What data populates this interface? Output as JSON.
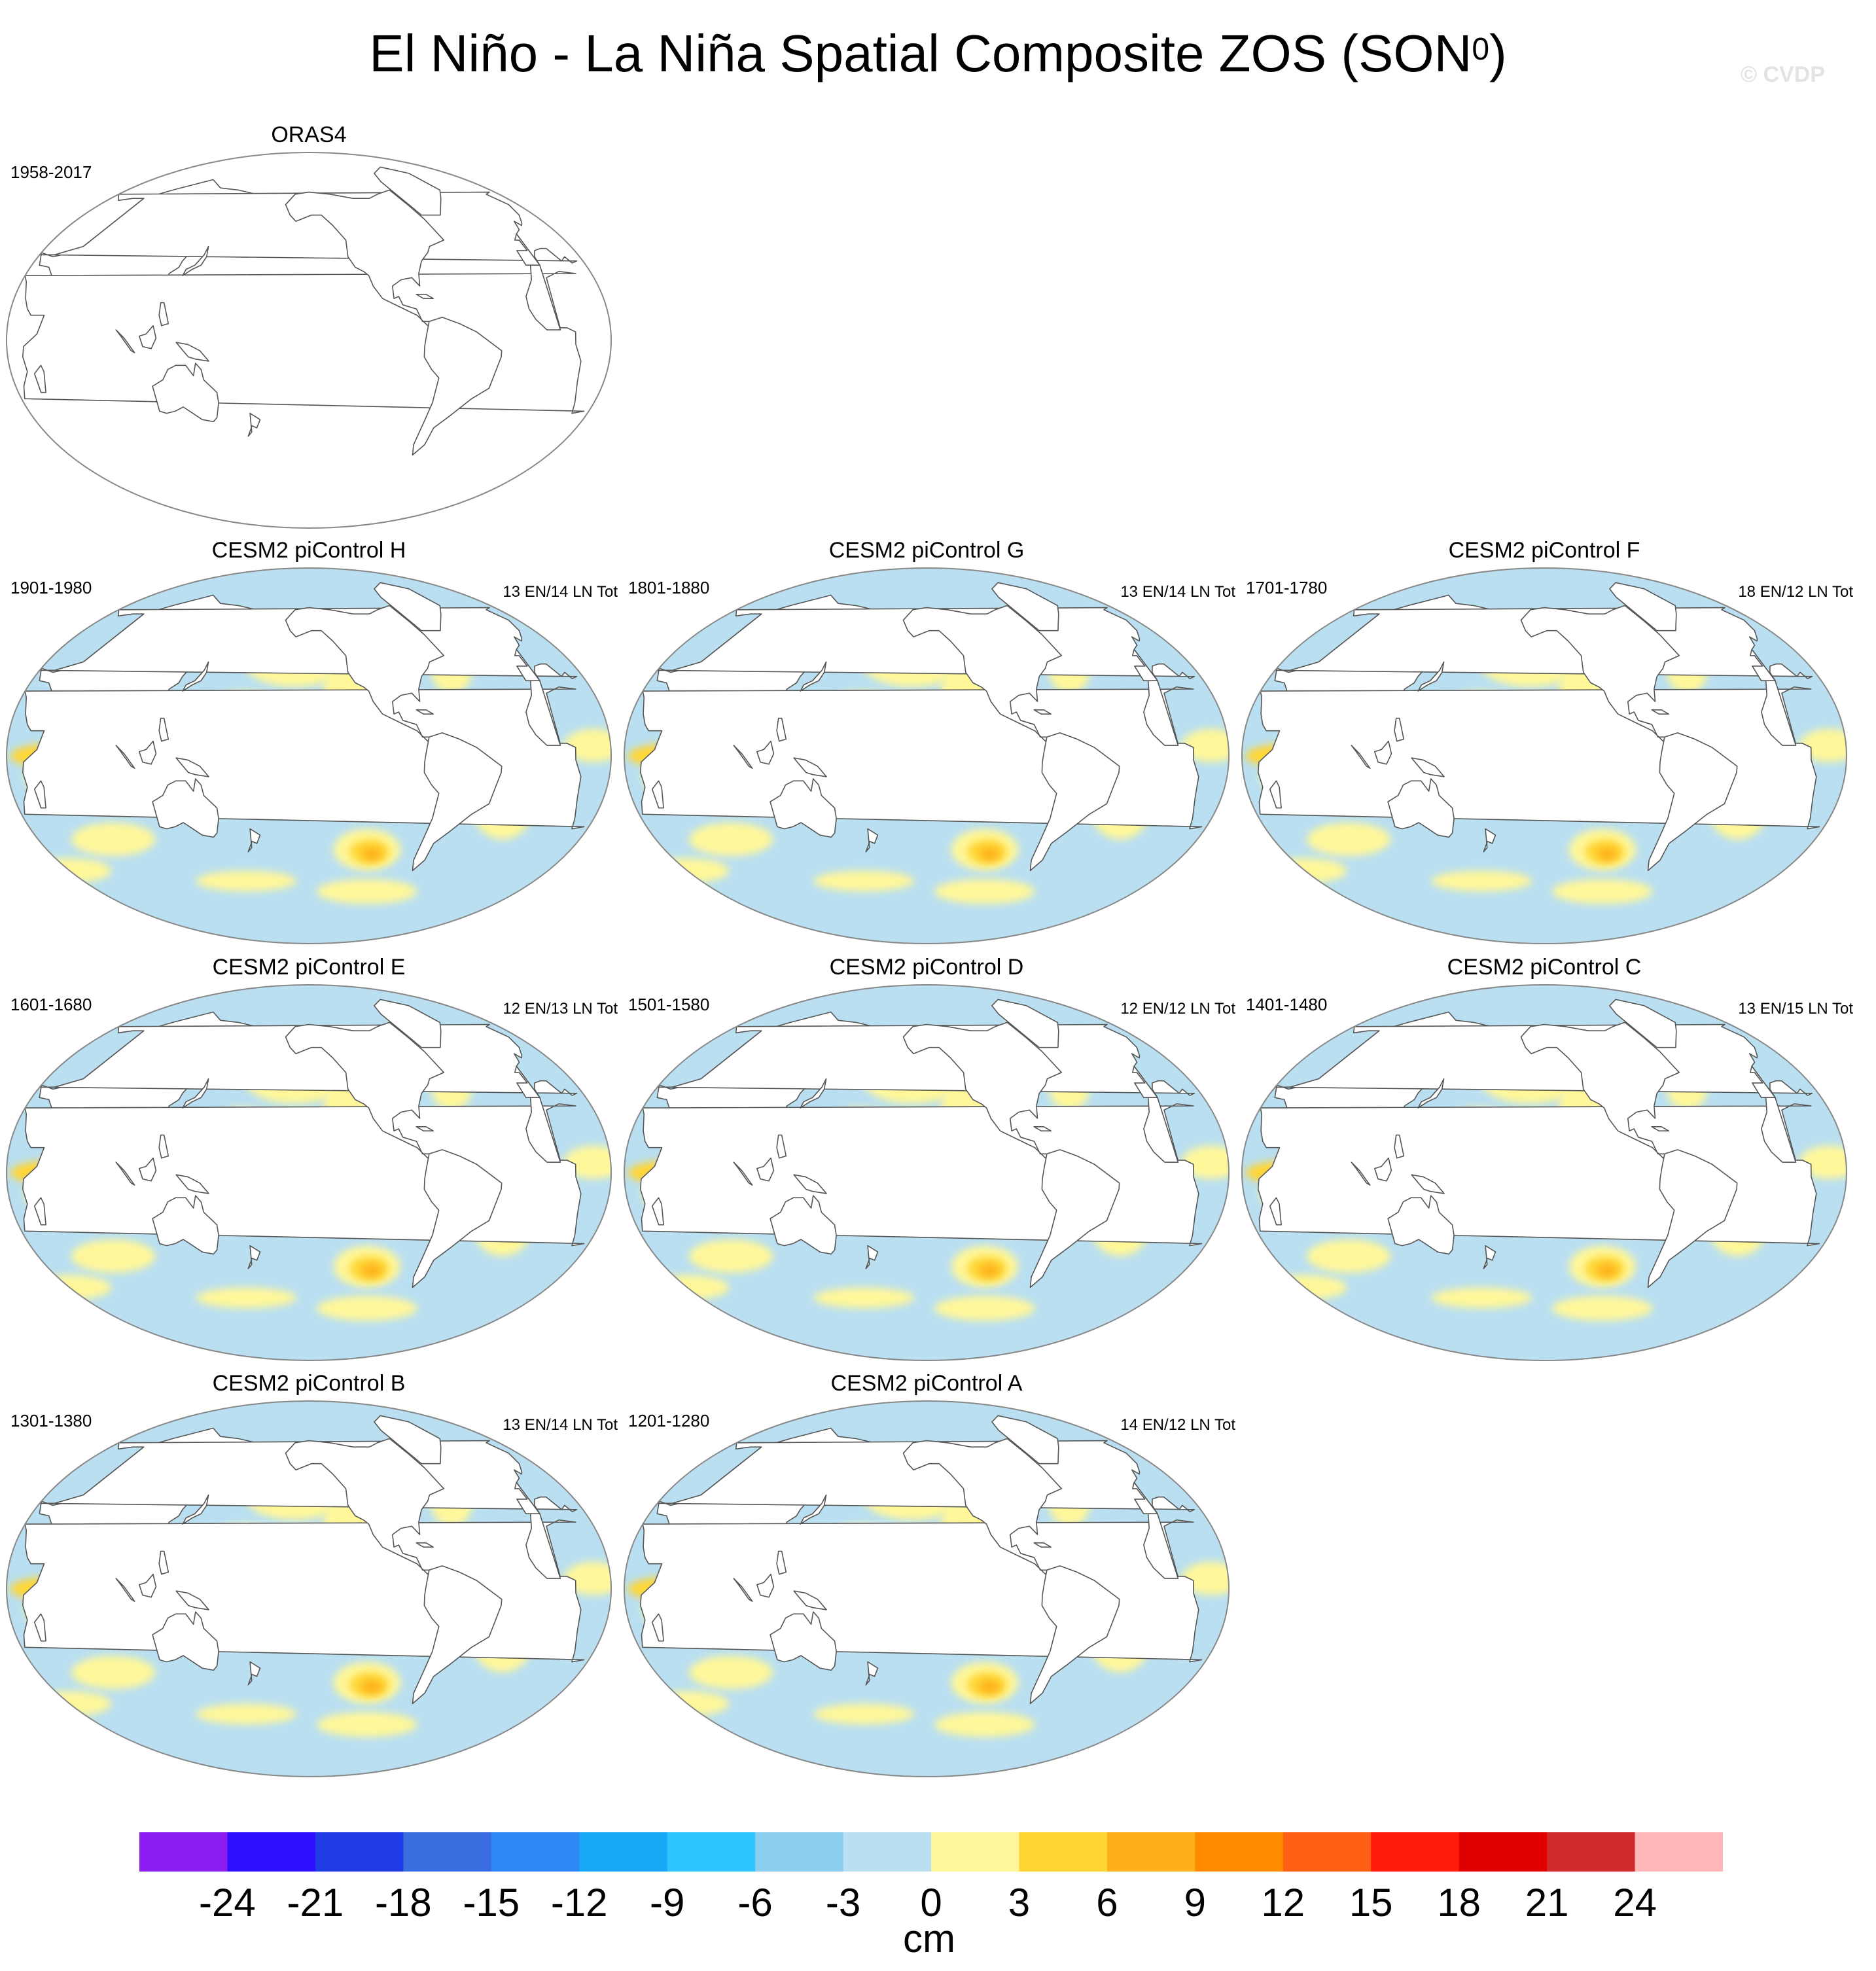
{
  "figure": {
    "title": "El Niño - La Niña Spatial Composite ZOS (SON",
    "title_superscript": "0",
    "title_close": ")",
    "watermark": "© CVDP"
  },
  "panels": [
    {
      "title": "ORAS4",
      "years": "1958-2017",
      "count": "",
      "has_data": false,
      "strength": 0
    },
    {
      "title": "CESM2 piControl H",
      "years": "1901-1980",
      "count": "13 EN/14 LN Tot",
      "has_data": true,
      "strength": 0.9
    },
    {
      "title": "CESM2 piControl G",
      "years": "1801-1880",
      "count": "13 EN/14 LN Tot",
      "has_data": true,
      "strength": 0.93
    },
    {
      "title": "CESM2 piControl F",
      "years": "1701-1780",
      "count": "18 EN/12 LN Tot",
      "has_data": true,
      "strength": 0.92
    },
    {
      "title": "CESM2 piControl E",
      "years": "1601-1680",
      "count": "12 EN/13 LN Tot",
      "has_data": true,
      "strength": 0.9
    },
    {
      "title": "CESM2 piControl D",
      "years": "1501-1580",
      "count": "12 EN/12 LN Tot",
      "has_data": true,
      "strength": 1.0
    },
    {
      "title": "CESM2 piControl C",
      "years": "1401-1480",
      "count": "13 EN/15 LN Tot",
      "has_data": true,
      "strength": 0.88
    },
    {
      "title": "CESM2 piControl B",
      "years": "1301-1380",
      "count": "13 EN/14 LN Tot",
      "has_data": true,
      "strength": 0.87
    },
    {
      "title": "CESM2 piControl A",
      "years": "1201-1280",
      "count": "14 EN/12 LN Tot",
      "has_data": true,
      "strength": 0.89
    }
  ],
  "colorbar": {
    "units": "cm",
    "tick_labels": [
      "-24",
      "-21",
      "-18",
      "-15",
      "-12",
      "-9",
      "-6",
      "-3",
      "0",
      "3",
      "6",
      "9",
      "12",
      "15",
      "18",
      "21",
      "24"
    ],
    "colors": [
      "#8b1cf0",
      "#2e10ff",
      "#1f3be6",
      "#3a6ee0",
      "#2d87f5",
      "#18a8f5",
      "#2dc3ff",
      "#8acdee",
      "#b9dff1",
      "#fff79a",
      "#fed634",
      "#feb01c",
      "#ff8c00",
      "#ff5f14",
      "#ff1a0a",
      "#e00000",
      "#d22a2a",
      "#ffb6b6"
    ]
  }
}
